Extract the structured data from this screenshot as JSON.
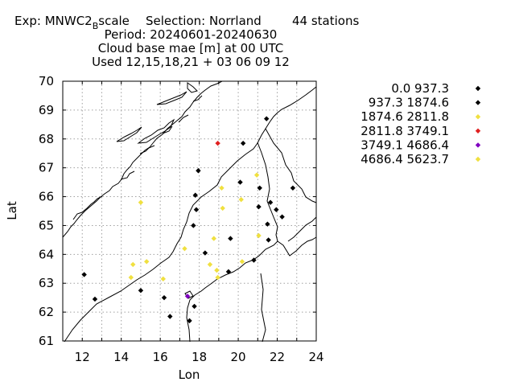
{
  "chart_data": {
    "type": "scatter",
    "title_lines": [
      "Exp: MNWC2_Bscale   Selection: Norrland      44 stations",
      "Period: 20240601-20240630",
      "Cloud base mae [m] at  00 UTC",
      "Used 12,15,18,21 + 03 06 09 12"
    ],
    "title_parts": {
      "exp_prefix": "Exp: MNWC2",
      "exp_subscript": "B",
      "exp_suffix": "scale",
      "selection": "Selection: Norrland",
      "stations": "44 stations"
    },
    "xlabel": "Lon",
    "ylabel": "Lat",
    "xlim": [
      11,
      24
    ],
    "ylim": [
      61,
      70
    ],
    "xticks": [
      "12",
      "14",
      "16",
      "18",
      "20",
      "22",
      "24"
    ],
    "yticks": [
      "61",
      "62",
      "63",
      "64",
      "65",
      "66",
      "67",
      "68",
      "69",
      "70"
    ],
    "grid": true,
    "legend_position": "right",
    "series": [
      {
        "name": "0.0 937.3",
        "color": "#000000",
        "points": [
          [
            12.1,
            63.3
          ],
          [
            12.65,
            62.45
          ],
          [
            15.0,
            62.75
          ],
          [
            16.2,
            62.5
          ],
          [
            16.5,
            61.85
          ],
          [
            17.5,
            61.7
          ],
          [
            17.75,
            62.2
          ],
          [
            17.7,
            65.0
          ],
          [
            17.85,
            65.55
          ],
          [
            17.8,
            66.05
          ],
          [
            17.95,
            66.9
          ],
          [
            18.3,
            64.05
          ],
          [
            19.5,
            63.4
          ],
          [
            19.6,
            64.55
          ],
          [
            20.1,
            66.5
          ],
          [
            20.25,
            67.85
          ],
          [
            20.8,
            63.8
          ],
          [
            21.05,
            65.65
          ],
          [
            21.1,
            66.3
          ],
          [
            21.45,
            68.7
          ],
          [
            21.5,
            65.05
          ],
          [
            21.55,
            64.5
          ],
          [
            21.65,
            65.8
          ],
          [
            21.95,
            65.55
          ],
          [
            22.25,
            65.3
          ],
          [
            22.8,
            66.3
          ]
        ]
      },
      {
        "name": "937.3 1874.6",
        "color": "#000000",
        "points": []
      },
      {
        "name": "1874.6 2811.8",
        "color": "#f0e040",
        "points": [
          [
            14.5,
            63.2
          ],
          [
            14.6,
            63.65
          ],
          [
            15.0,
            65.8
          ],
          [
            15.3,
            63.75
          ],
          [
            16.15,
            63.15
          ],
          [
            17.25,
            64.2
          ],
          [
            18.55,
            63.65
          ],
          [
            18.75,
            64.55
          ],
          [
            18.9,
            63.45
          ],
          [
            18.95,
            63.2
          ],
          [
            19.15,
            66.3
          ],
          [
            19.2,
            65.6
          ],
          [
            20.15,
            65.9
          ],
          [
            20.2,
            63.75
          ],
          [
            20.95,
            66.75
          ],
          [
            21.05,
            64.65
          ]
        ]
      },
      {
        "name": "2811.8 3749.1",
        "color": "#e02020",
        "points": [
          [
            18.95,
            67.85
          ]
        ]
      },
      {
        "name": "3749.1 4686.4",
        "color": "#8000c0",
        "points": [
          [
            17.4,
            62.55
          ]
        ]
      },
      {
        "name": "4686.4 5623.7",
        "color": "#f0e040",
        "points": []
      }
    ]
  }
}
